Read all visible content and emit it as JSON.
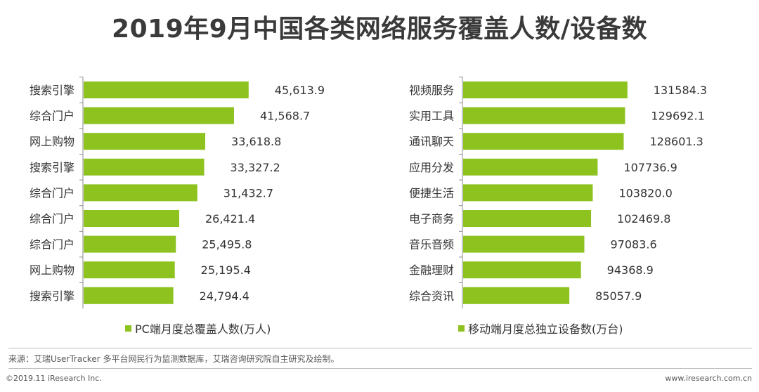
{
  "title": "2019年9月中国各类网络服务覆盖人数/设备数",
  "chart_data": [
    {
      "type": "bar",
      "orientation": "horizontal",
      "categories": [
        "搜索引擎",
        "综合门户",
        "网上购物",
        "搜索引擎",
        "综合门户",
        "综合门户",
        "综合门户",
        "网上购物",
        "搜索引擎"
      ],
      "value_labels": [
        "45,613.9",
        "41,568.7",
        "33,618.8",
        "33,327.2",
        "31,432.7",
        "26,421.4",
        "25,495.8",
        "25,195.4",
        "24,794.4"
      ],
      "values": [
        45613.9,
        41568.7,
        33618.8,
        33327.2,
        31432.7,
        26421.4,
        25495.8,
        25195.4,
        24794.4
      ],
      "xlim": [
        0,
        68000
      ],
      "legend": "PC端月度总覆盖人数(万人)",
      "legend_position": "bottom",
      "color": "#8dc21f"
    },
    {
      "type": "bar",
      "orientation": "horizontal",
      "categories": [
        "视频服务",
        "实用工具",
        "通讯聊天",
        "应用分发",
        "便捷生活",
        "电子商务",
        "音乐音频",
        "金融理财",
        "综合资讯"
      ],
      "value_labels": [
        "131584.3",
        "129692.1",
        "128601.3",
        "107736.9",
        "103820.0",
        "102469.8",
        "97083.6",
        "94368.9",
        "85057.9"
      ],
      "values": [
        131584.3,
        129692.1,
        128601.3,
        107736.9,
        103820.0,
        102469.8,
        97083.6,
        94368.9,
        85057.9
      ],
      "xlim": [
        0,
        197000
      ],
      "legend": "移动端月度总独立设备数(万台)",
      "legend_position": "bottom",
      "color": "#8dc21f"
    }
  ],
  "source": "来源：艾瑞UserTracker 多平台网民行为监测数据库，艾瑞咨询研究院自主研究及绘制。",
  "footer": {
    "copyright": "©2019.11 iResearch Inc.",
    "website": "www.iresearch.com.cn"
  }
}
